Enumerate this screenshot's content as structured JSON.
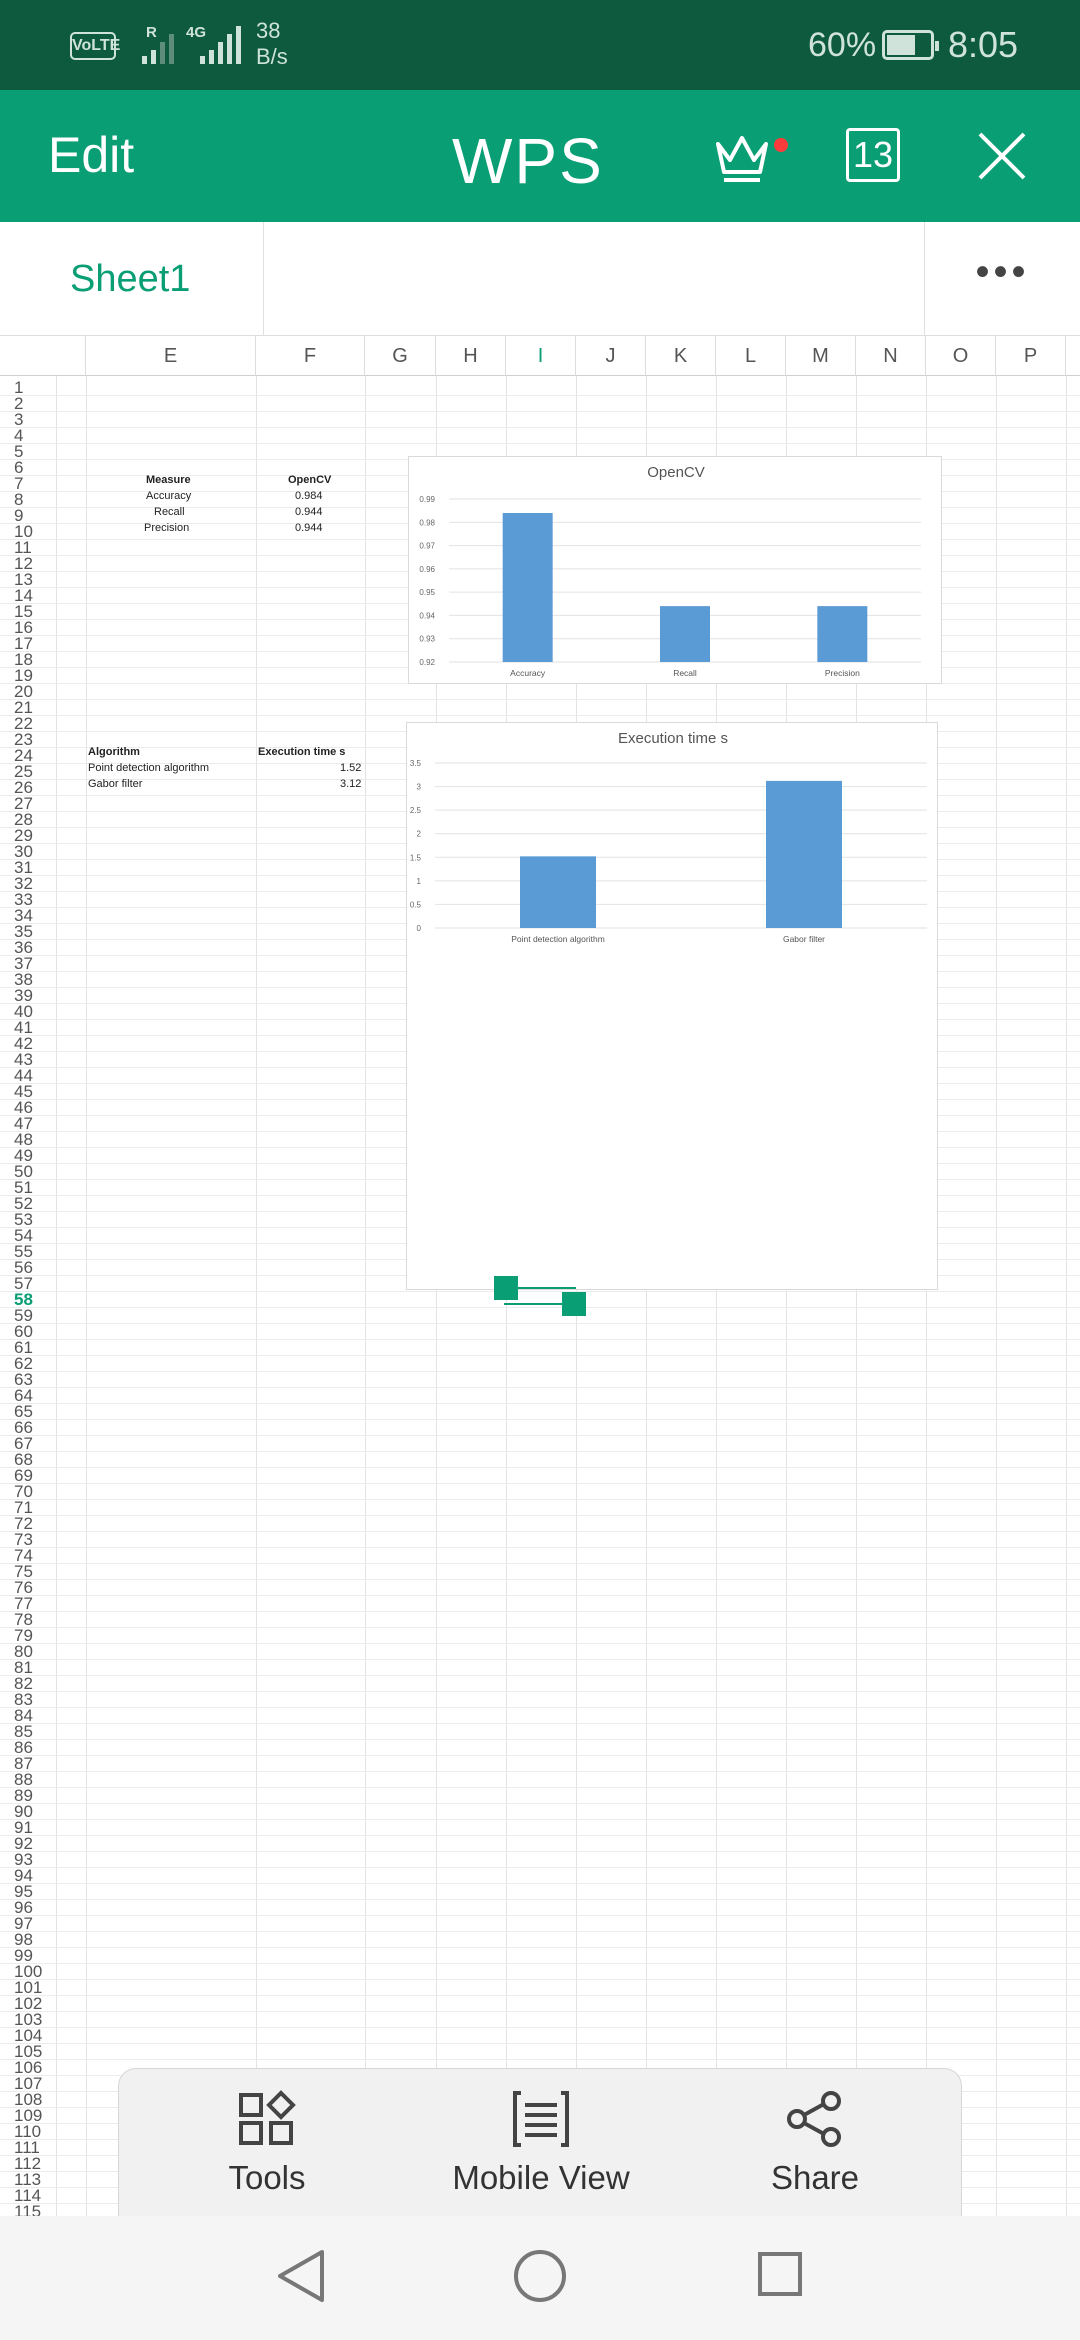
{
  "status_bar": {
    "volte": "VoLTE",
    "net_r": "R",
    "net_4g": "4G",
    "speed_value": "38",
    "speed_unit": "B/s",
    "battery": "60%",
    "time": "8:05"
  },
  "header": {
    "edit_label": "Edit",
    "logo": "WPS",
    "tab_count": "13",
    "icons": [
      "crown-icon",
      "notification-dot",
      "close-icon"
    ]
  },
  "sheet_bar": {
    "active_sheet": "Sheet1",
    "more_label": "•••"
  },
  "columns": [
    "E",
    "F",
    "G",
    "H",
    "I",
    "J",
    "K",
    "L",
    "M",
    "N",
    "O",
    "P"
  ],
  "active_column": "I",
  "active_row": "58",
  "rows": {
    "first": 1,
    "last": 115
  },
  "cells": {
    "measure_header": "Measure",
    "opencv_header": "OpenCV",
    "measures": [
      {
        "label": "Accuracy",
        "value": "0.984"
      },
      {
        "label": "Recall",
        "value": "0.944"
      },
      {
        "label": "Precision",
        "value": "0.944"
      }
    ],
    "algorithm_header": "Algorithm",
    "exec_header": "Execution time s",
    "algorithms": [
      {
        "label": "Point detection algorithm",
        "value": "1.52"
      },
      {
        "label": "Gabor filter",
        "value": "3.12"
      }
    ]
  },
  "chart_data": [
    {
      "type": "bar",
      "title": "OpenCV",
      "categories": [
        "Accuracy",
        "Recall",
        "Precision"
      ],
      "values": [
        0.984,
        0.944,
        0.944
      ],
      "ylim": [
        0.92,
        0.99
      ],
      "yticks": [
        "0.99",
        "0.98",
        "0.97",
        "0.96",
        "0.95",
        "0.94",
        "0.93",
        "0.92"
      ],
      "grid": true,
      "color": "#5b9bd5"
    },
    {
      "type": "bar",
      "title": "Execution time s",
      "categories": [
        "Point detection algorithm",
        "Gabor filter"
      ],
      "values": [
        1.52,
        3.12
      ],
      "ylim": [
        0,
        3.5
      ],
      "yticks": [
        "3.5",
        "3",
        "2.5",
        "2",
        "1.5",
        "1",
        "0.5",
        "0"
      ],
      "grid": true,
      "color": "#5b9bd5"
    }
  ],
  "toolbar": {
    "tools_label": "Tools",
    "mobile_view_label": "Mobile View",
    "share_label": "Share"
  },
  "colors": {
    "accent": "#0a9e74",
    "status_bar": "#0d5a3f",
    "bar": "#5b9bd5"
  }
}
